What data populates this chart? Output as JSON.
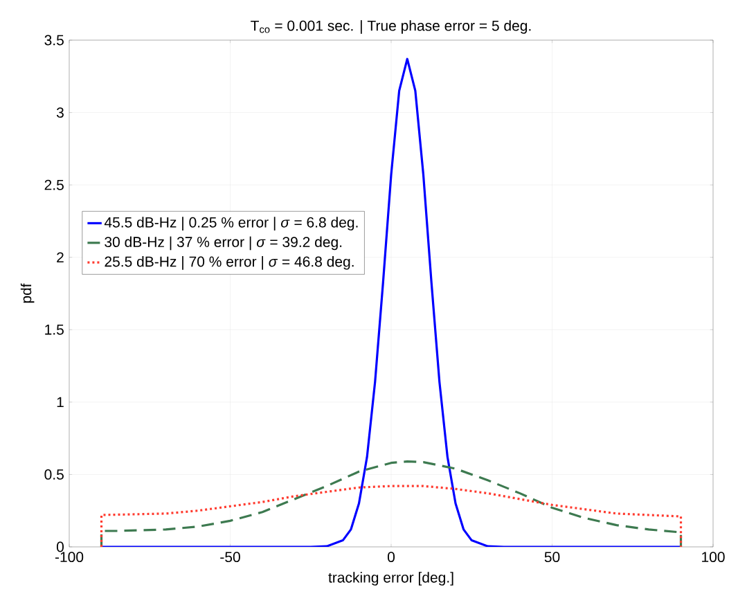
{
  "chart_data": {
    "type": "line",
    "title": "T$_{co}$ = 0.001 sec.  |  True phase error = 5 deg.",
    "xlabel": "tracking error [deg.]",
    "ylabel": "pdf",
    "xlim": [
      -100,
      100
    ],
    "ylim": [
      0,
      3.5
    ],
    "xticks": [
      -100,
      -50,
      0,
      50,
      100
    ],
    "yticks": [
      0,
      0.5,
      1,
      1.5,
      2,
      2.5,
      3,
      3.5
    ],
    "grid": true,
    "legend": "left",
    "series": [
      {
        "name": "45.5 dB-Hz  |  0.25 % error  | *σ* = 6.8 deg.",
        "color": "#0000ff",
        "line_style": "solid",
        "x": [
          -90,
          -90,
          -30,
          -25,
          -20,
          -15,
          -12.5,
          -10,
          -7.5,
          -5,
          -2.5,
          0,
          2.5,
          5,
          7.5,
          10,
          12.5,
          15,
          17.5,
          20,
          22.5,
          25,
          30,
          35,
          40,
          90,
          90
        ],
        "values": [
          0,
          0,
          0,
          0,
          0.004,
          0.045,
          0.12,
          0.3,
          0.62,
          1.14,
          1.83,
          2.57,
          3.15,
          3.37,
          3.15,
          2.57,
          1.83,
          1.14,
          0.62,
          0.3,
          0.12,
          0.045,
          0.004,
          0,
          0,
          0,
          0
        ]
      },
      {
        "name": "30 dB-Hz  |  37 % error  | *σ* = 39.2 deg.",
        "color": "#3d7a50",
        "line_style": "dashed",
        "x": [
          -90,
          -90,
          -85,
          -70,
          -60,
          -50,
          -40,
          -30,
          -20,
          -10,
          0,
          5,
          10,
          20,
          30,
          40,
          50,
          60,
          70,
          80,
          90,
          90
        ],
        "values": [
          0,
          0.11,
          0.11,
          0.12,
          0.14,
          0.18,
          0.24,
          0.33,
          0.42,
          0.52,
          0.58,
          0.59,
          0.585,
          0.54,
          0.46,
          0.37,
          0.27,
          0.2,
          0.15,
          0.12,
          0.1,
          0
        ]
      },
      {
        "name": "25.5 dB-Hz  |  70 % error  | *σ* = 46.8 deg.",
        "color": "#ff3b2f",
        "line_style": "dotted",
        "x": [
          -90,
          -90,
          -70,
          -60,
          -50,
          -40,
          -30,
          -20,
          -10,
          0,
          5,
          10,
          20,
          30,
          40,
          50,
          60,
          70,
          80,
          90,
          90
        ],
        "values": [
          0,
          0.22,
          0.23,
          0.25,
          0.28,
          0.31,
          0.35,
          0.38,
          0.41,
          0.42,
          0.42,
          0.42,
          0.4,
          0.37,
          0.33,
          0.29,
          0.26,
          0.23,
          0.22,
          0.21,
          0
        ]
      }
    ]
  }
}
